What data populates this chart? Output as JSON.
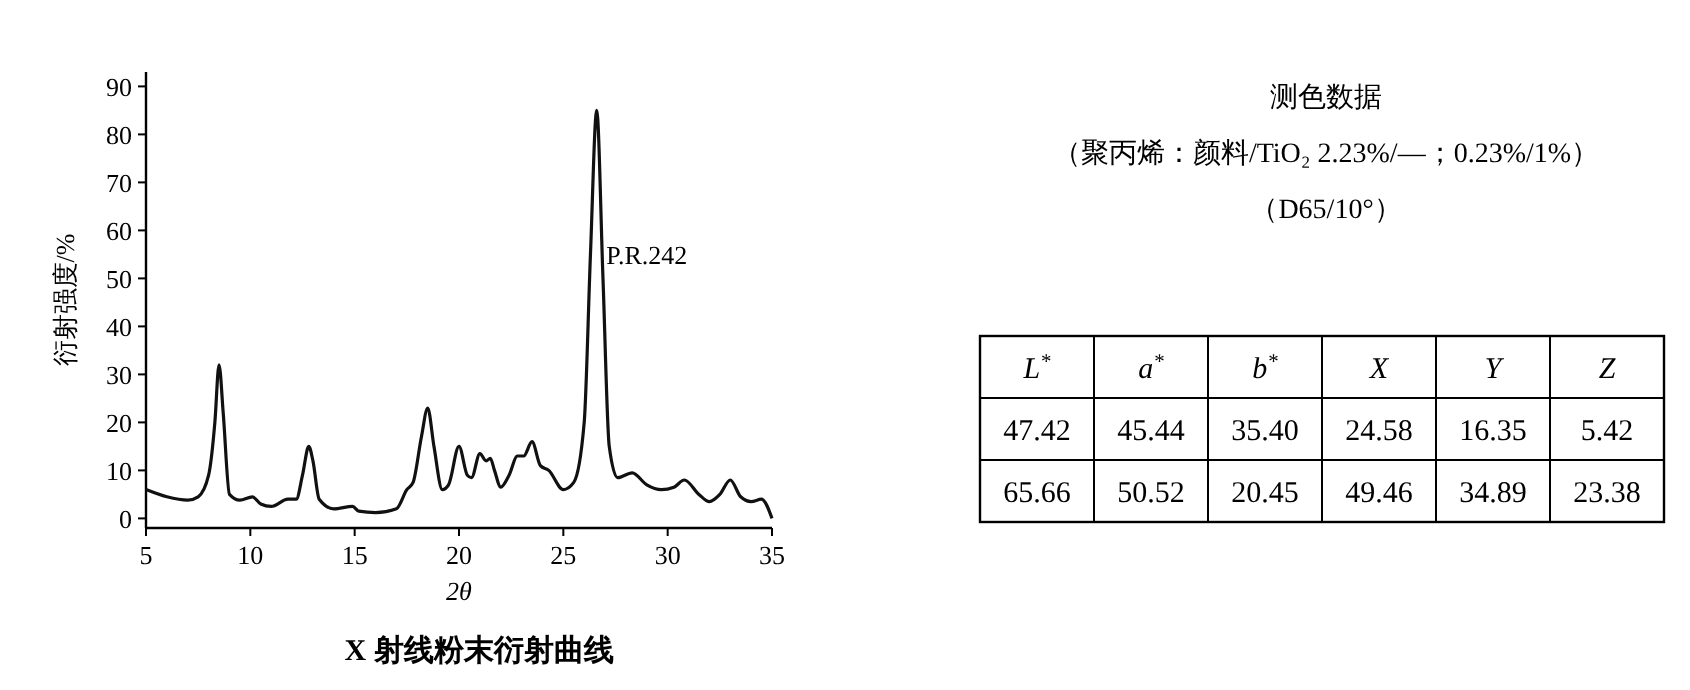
{
  "chart_data": [
    {
      "type": "line",
      "title": "X 射线粉末衍射曲线",
      "xlabel": "2θ",
      "ylabel": "衍射强度/%",
      "annotations": [
        "P.R.242"
      ],
      "xlim": [
        5,
        35
      ],
      "ylim": [
        -2,
        93
      ],
      "xticks": [
        5,
        10,
        15,
        20,
        25,
        30,
        35
      ],
      "yticks": [
        0,
        10,
        20,
        30,
        40,
        50,
        60,
        70,
        80,
        90
      ],
      "grid": false,
      "series": [
        {
          "color": "#111111",
          "x": [
            5,
            6,
            7,
            7.5,
            8,
            8.3,
            8.5,
            8.7,
            9,
            9.5,
            10.1,
            10.5,
            11,
            11.8,
            12.2,
            12.5,
            12.8,
            13,
            13.3,
            14,
            14.9,
            15.2,
            16,
            17,
            17.5,
            17.8,
            18.2,
            18.5,
            18.8,
            19.2,
            19.5,
            20,
            20.4,
            20.6,
            21,
            21.3,
            21.5,
            21.7,
            22,
            22.4,
            22.8,
            23.1,
            23.5,
            23.9,
            24.3,
            25,
            25.5,
            26,
            26.3,
            26.6,
            26.9,
            27.2,
            27.6,
            28.3,
            29,
            29.7,
            30.3,
            30.8,
            31.5,
            32,
            32.5,
            33,
            33.5,
            34,
            34.5,
            35
          ],
          "values": [
            6,
            4.5,
            3.8,
            4.5,
            9,
            20,
            32,
            22,
            5,
            3.8,
            4.5,
            3,
            2.5,
            4,
            4,
            9,
            15,
            12,
            4,
            2,
            2.5,
            1.5,
            1.2,
            2,
            6,
            7.5,
            17,
            23,
            15,
            6,
            7,
            15,
            9,
            8.5,
            13.5,
            12,
            12.5,
            10,
            6.5,
            9,
            13,
            13,
            16,
            11,
            10,
            6,
            7.5,
            20,
            55,
            85,
            50,
            15,
            8.5,
            9.5,
            7,
            6,
            6.5,
            8,
            5,
            3.5,
            5,
            8,
            4.5,
            3.5,
            4,
            0
          ]
        }
      ]
    },
    {
      "type": "other",
      "title": "测色数据",
      "subtitle": "（聚丙烯：颜料/TiO₂ 2.23%/—；0.23%/1%）",
      "annotations": [
        "（D65/10°）"
      ],
      "categories": [
        "L$^{*}$",
        "a$^{*}$",
        "b$^{*}$",
        "X",
        "Y",
        "Z"
      ],
      "series": [
        {
          "values": [
            47.42,
            45.44,
            35.4,
            24.58,
            16.35,
            5.42
          ],
          "value_labels": [
            "47.42",
            "45.44",
            "35.40",
            "24.58",
            "16.35",
            "5.42"
          ]
        },
        {
          "values": [
            65.66,
            50.52,
            20.45,
            49.46,
            34.89,
            23.38
          ],
          "value_labels": [
            "65.66",
            "50.52",
            "20.45",
            "49.46",
            "34.89",
            "23.38"
          ]
        }
      ]
    }
  ]
}
